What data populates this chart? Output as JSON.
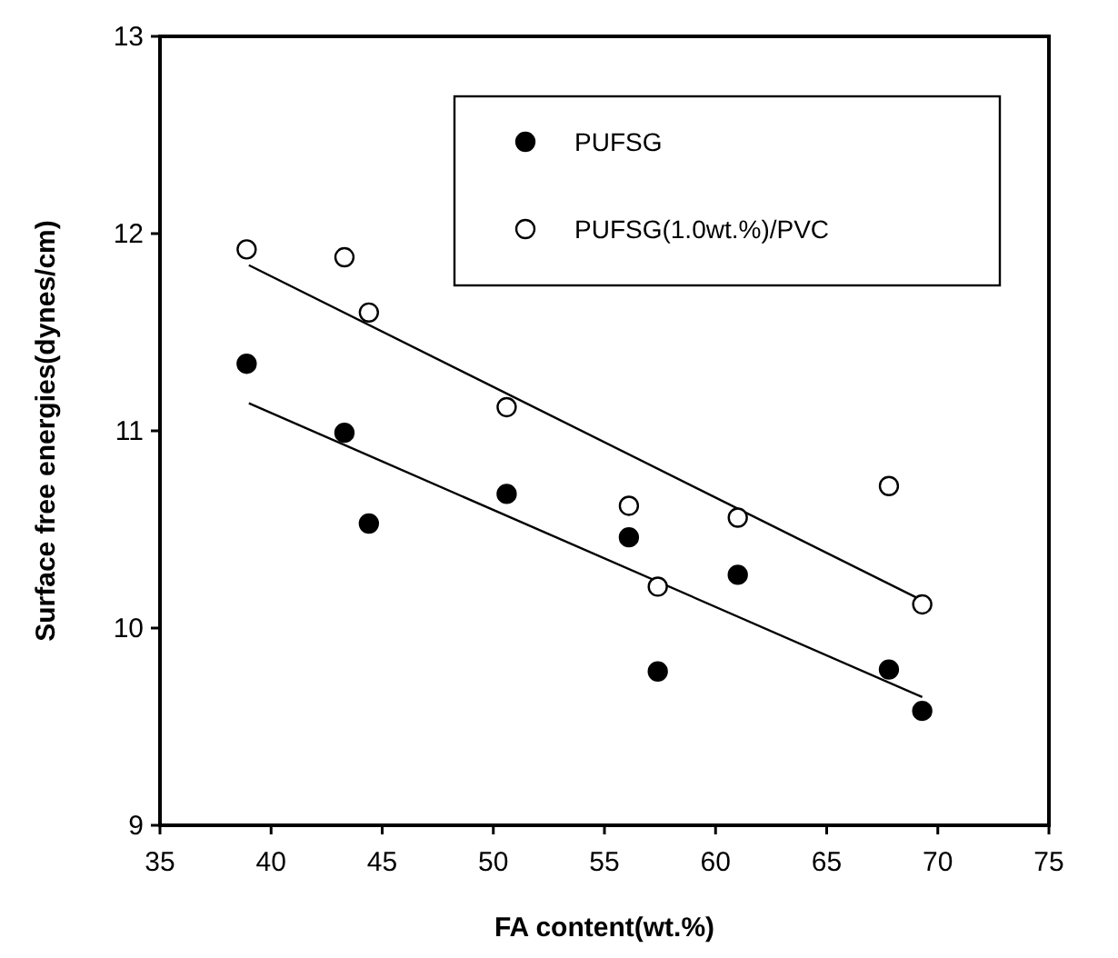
{
  "chart_data": {
    "type": "scatter",
    "xlabel": "FA content(wt.%)",
    "ylabel": "Surface free energies(dynes/cm)",
    "xlim": [
      35,
      75
    ],
    "ylim": [
      9,
      13
    ],
    "xticks": [
      35,
      40,
      45,
      50,
      55,
      60,
      65,
      70,
      75
    ],
    "yticks": [
      9,
      10,
      11,
      12,
      13
    ],
    "grid": false,
    "legend": "top right",
    "series": [
      {
        "name": "PUFSG",
        "marker": "circle",
        "color": "#000000",
        "x": [
          38.9,
          43.3,
          44.4,
          50.6,
          56.1,
          57.4,
          61.0,
          67.8,
          69.3
        ],
        "values": [
          11.34,
          10.99,
          10.53,
          10.68,
          10.46,
          9.78,
          10.27,
          9.79,
          9.58
        ]
      },
      {
        "name": "PUFSG(1.0wt.%)/PVC",
        "marker": "circle",
        "color": "#ffffff",
        "x": [
          38.9,
          43.3,
          44.4,
          50.6,
          56.1,
          57.4,
          61.0,
          67.8,
          69.3
        ],
        "values": [
          11.92,
          11.88,
          11.6,
          11.12,
          10.62,
          10.21,
          10.56,
          10.72,
          10.12
        ]
      },
      {
        "type": "line",
        "color": "#000000",
        "x": [
          39,
          69.3
        ],
        "values": [
          11.14,
          9.65
        ]
      },
      {
        "type": "line",
        "color": "#000000",
        "x": [
          39,
          69.3
        ],
        "values": [
          11.84,
          10.14
        ]
      }
    ]
  }
}
